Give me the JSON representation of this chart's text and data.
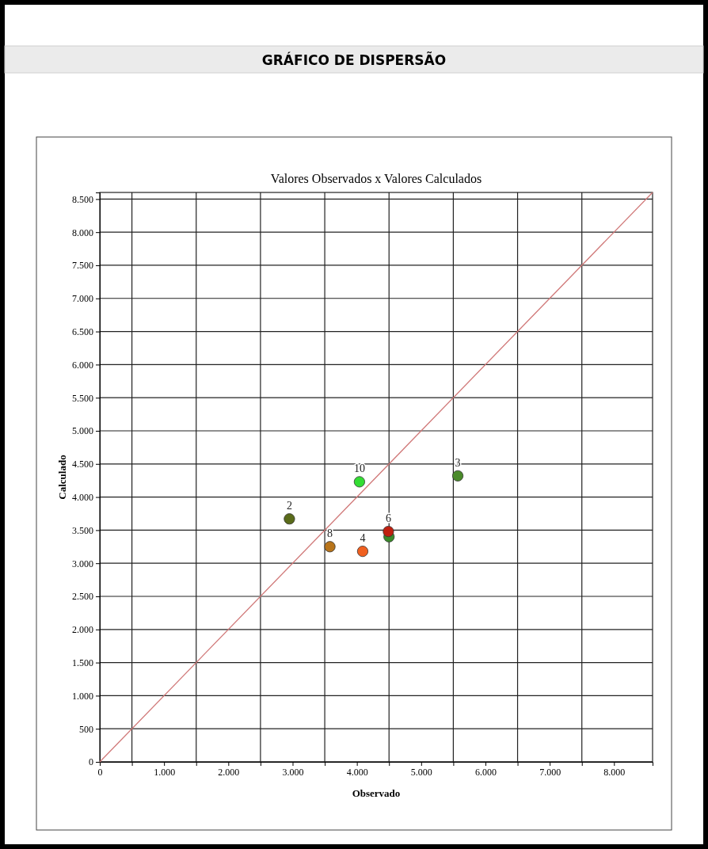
{
  "chart_data": {
    "type": "scatter",
    "title": "GRÁFICO DE DISPERSÃO",
    "subtitle": "Valores Observados x Valores Calculados",
    "xlabel": "Observado",
    "ylabel": "Calculado",
    "xlim": [
      0,
      8600
    ],
    "ylim": [
      0,
      8600
    ],
    "xticks": [
      {
        "value": 0,
        "label": "0"
      },
      {
        "value": 500,
        "label": null
      },
      {
        "value": 1000,
        "label": "1.000"
      },
      {
        "value": 1500,
        "label": null
      },
      {
        "value": 2000,
        "label": "2.000"
      },
      {
        "value": 2500,
        "label": null
      },
      {
        "value": 3000,
        "label": "3.000"
      },
      {
        "value": 3500,
        "label": null
      },
      {
        "value": 4000,
        "label": "4.000"
      },
      {
        "value": 4500,
        "label": null
      },
      {
        "value": 5000,
        "label": "5.000"
      },
      {
        "value": 5500,
        "label": null
      },
      {
        "value": 6000,
        "label": "6.000"
      },
      {
        "value": 6500,
        "label": null
      },
      {
        "value": 7000,
        "label": "7.000"
      },
      {
        "value": 7500,
        "label": null
      },
      {
        "value": 8000,
        "label": "8.000"
      }
    ],
    "yticks": [
      {
        "value": 0,
        "label": "0"
      },
      {
        "value": 500,
        "label": "500"
      },
      {
        "value": 1000,
        "label": "1.000"
      },
      {
        "value": 1500,
        "label": "1.500"
      },
      {
        "value": 2000,
        "label": "2.000"
      },
      {
        "value": 2500,
        "label": "2.500"
      },
      {
        "value": 3000,
        "label": "3.000"
      },
      {
        "value": 3500,
        "label": "3.500"
      },
      {
        "value": 4000,
        "label": "4.000"
      },
      {
        "value": 4500,
        "label": "4.500"
      },
      {
        "value": 5000,
        "label": "5.000"
      },
      {
        "value": 5500,
        "label": "5.500"
      },
      {
        "value": 6000,
        "label": "6.000"
      },
      {
        "value": 6500,
        "label": "6.500"
      },
      {
        "value": 7000,
        "label": "7.000"
      },
      {
        "value": 7500,
        "label": "7.500"
      },
      {
        "value": 8000,
        "label": "8.000"
      },
      {
        "value": 8500,
        "label": "8.500"
      }
    ],
    "grid": true,
    "marker": "circle",
    "series": [
      {
        "type": "line",
        "color": "#d07878",
        "x": [
          0,
          8600
        ],
        "values": [
          0,
          8600
        ],
        "marker": "none"
      },
      {
        "x": [
          2950,
          4040,
          5570,
          3580,
          4090,
          4500,
          4490
        ],
        "values": [
          3670,
          4230,
          4320,
          3250,
          3180,
          3400,
          3480
        ],
        "colors": [
          "#5a6b1a",
          "#33dd33",
          "#4a8a2a",
          "#b8741a",
          "#f06020",
          "#3a8a2a",
          "#c02010"
        ]
      }
    ],
    "annotations": [
      {
        "text": "2",
        "x": 2950,
        "y": 3670
      },
      {
        "text": "10",
        "x": 4040,
        "y": 4230
      },
      {
        "text": "3",
        "x": 5570,
        "y": 4320
      },
      {
        "text": "8",
        "x": 3580,
        "y": 3250
      },
      {
        "text": "4",
        "x": 4090,
        "y": 3180
      },
      {
        "text": "6",
        "x": 4490,
        "y": 3480
      }
    ]
  }
}
